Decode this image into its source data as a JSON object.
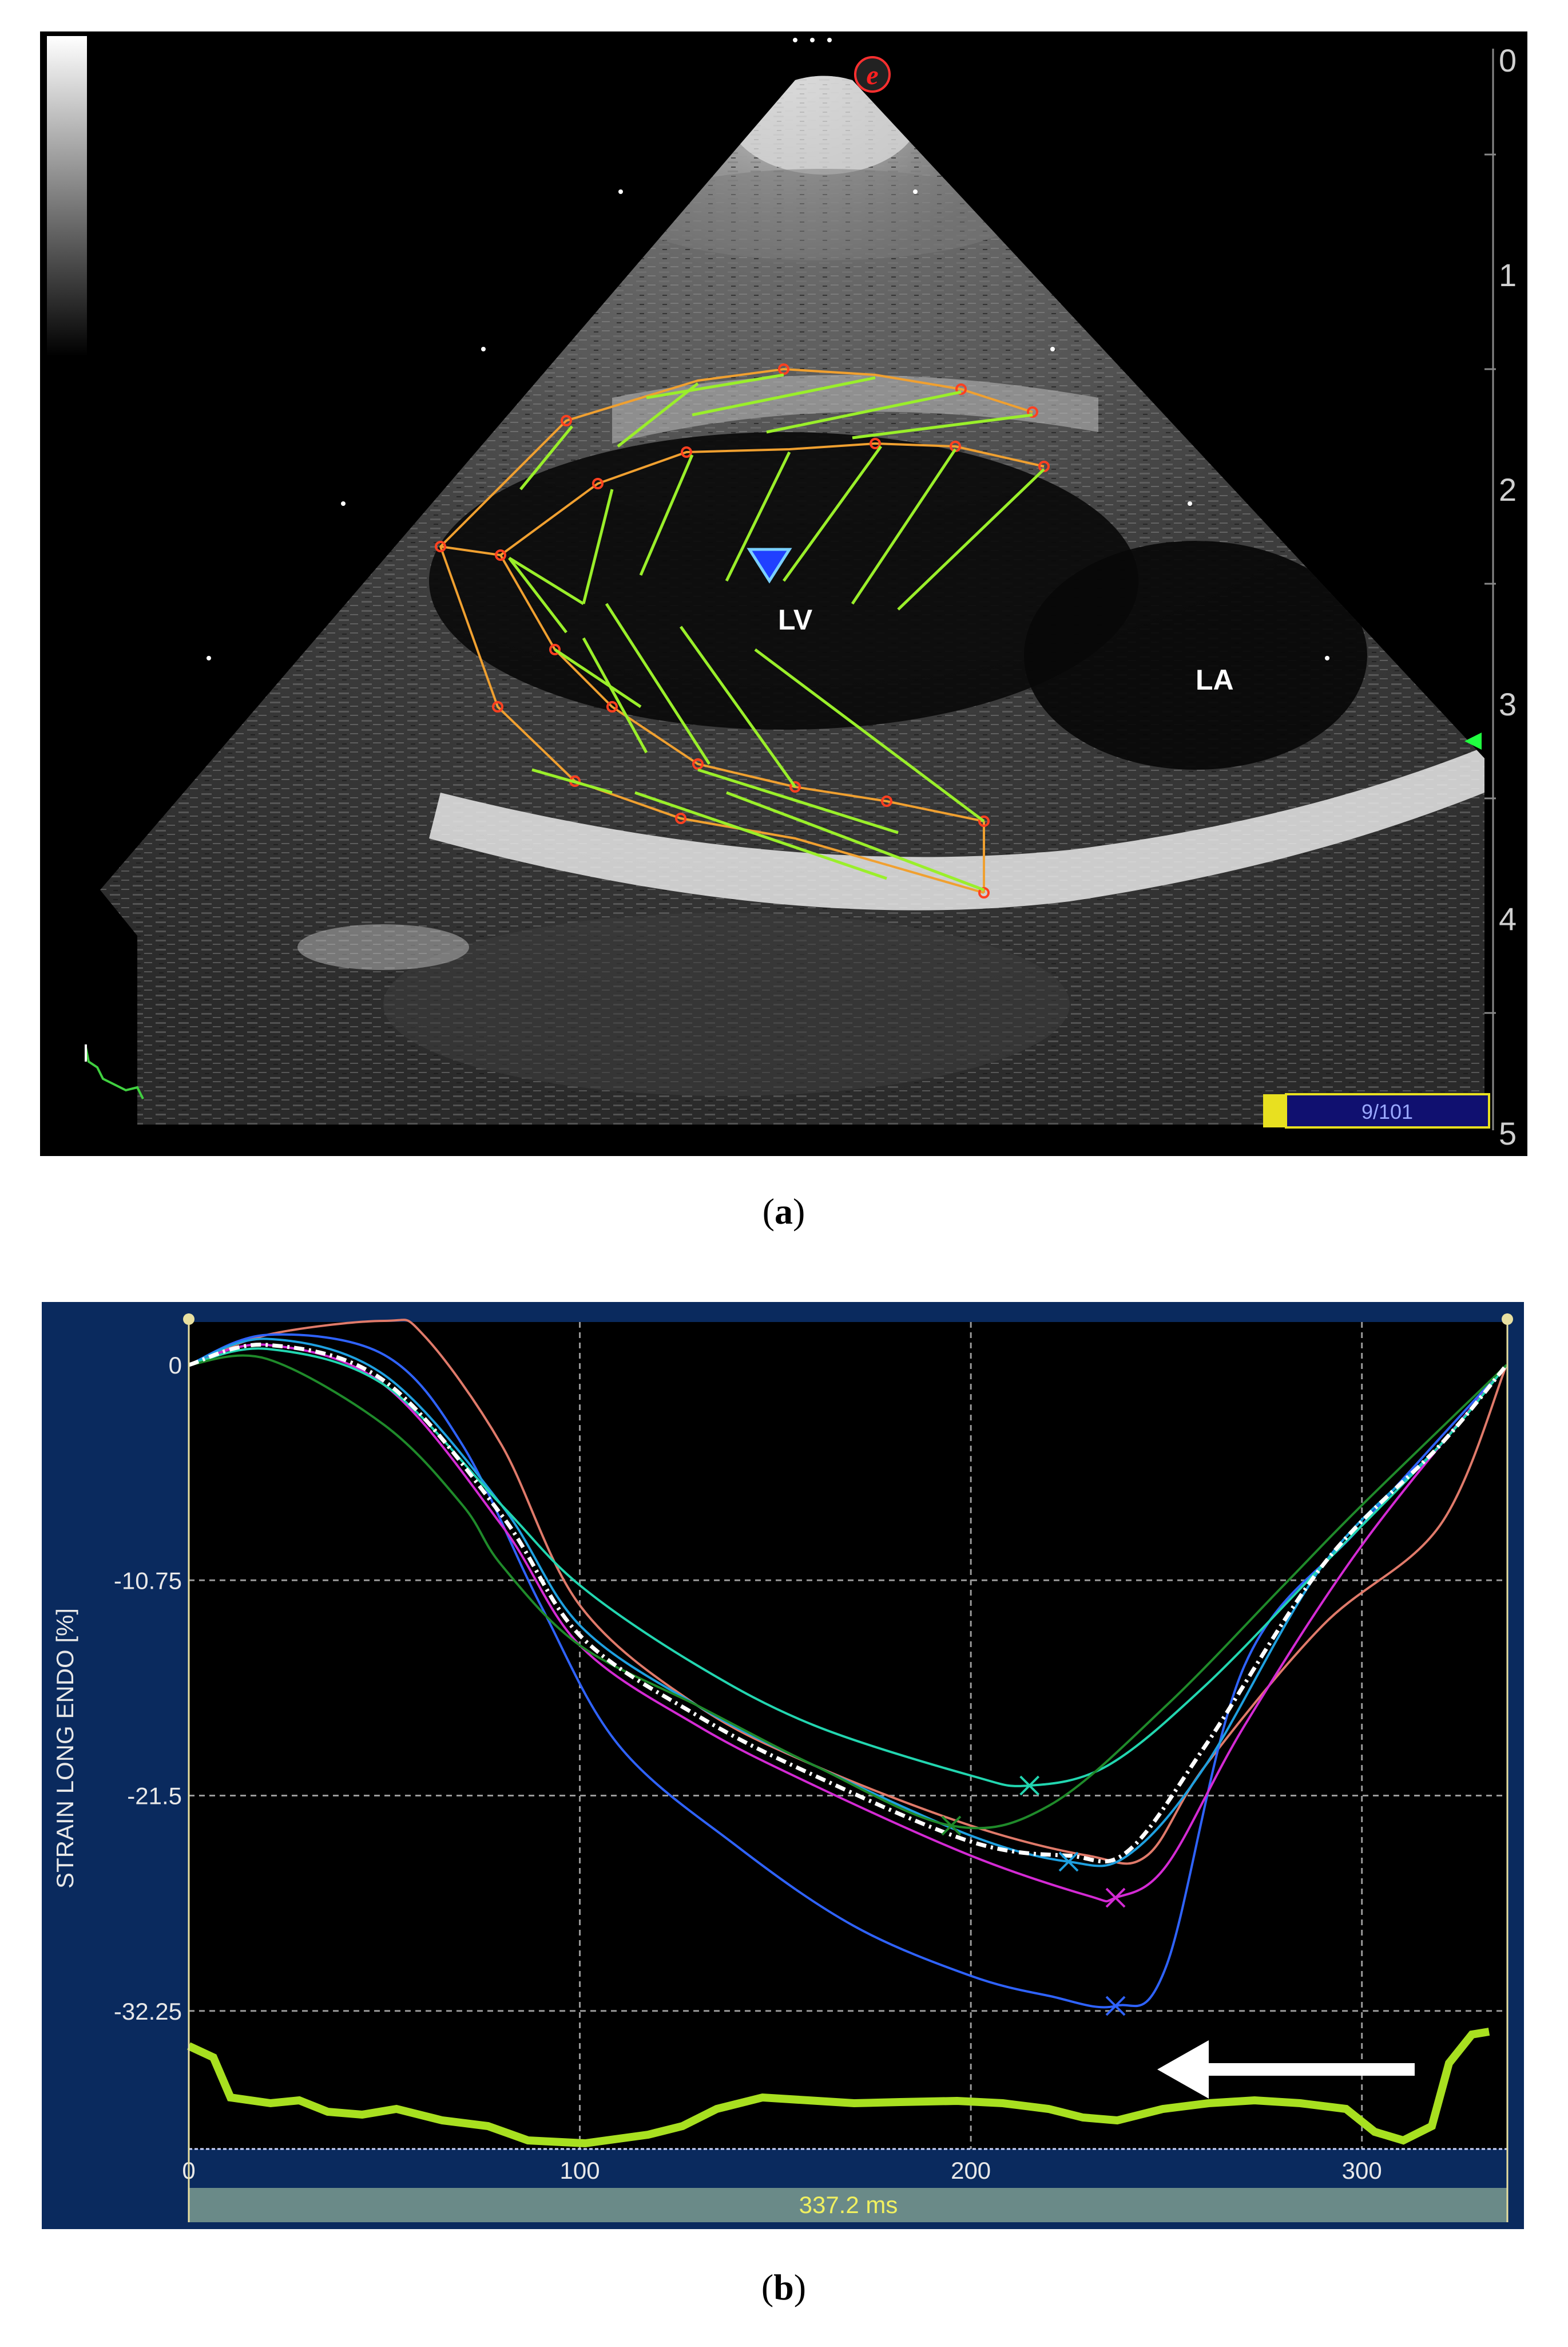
{
  "echo": {
    "labels": {
      "lv": "LV",
      "la": "LA"
    },
    "depth_scale": [
      "0",
      "1",
      "2",
      "3",
      "4",
      "5"
    ],
    "frame_counter": "9/101",
    "vendor_badge": "e",
    "colors": {
      "contour": "#f0a030",
      "vector": "#9aef2a",
      "point": "#ff4020",
      "marker": "#2850ff"
    }
  },
  "captions": {
    "a": "a",
    "b": "b"
  },
  "strain_chart": {
    "ylabel": "STRAIN LONG ENDO [%]",
    "footer": "337.2 ms"
  },
  "chart_data": {
    "type": "line",
    "xlabel": "",
    "ylabel": "STRAIN LONG ENDO [%]",
    "xlim": [
      0,
      337.2
    ],
    "ylim": [
      -40,
      2
    ],
    "x_ticks": [
      0,
      100,
      200,
      300
    ],
    "x_tick_labels": [
      "0",
      "100",
      "200",
      "300"
    ],
    "y_ticks": [
      0,
      -10.75,
      -21.5,
      -32.25
    ],
    "y_tick_labels": [
      "0",
      "-10.75",
      "-21.5",
      "-32.25"
    ],
    "grid": true,
    "series": [
      {
        "color": "#e07a6a",
        "x": [
          0,
          20,
          50,
          60,
          80,
          100,
          130,
          160,
          200,
          230,
          245,
          260,
          290,
          320,
          337
        ],
        "y": [
          0,
          1.5,
          2.2,
          1.5,
          -4,
          -12,
          -17,
          -20,
          -23,
          -24.5,
          -24.5,
          -20,
          -13,
          -8,
          0
        ],
        "marker": null
      },
      {
        "color": "#2f63ff",
        "x": [
          0,
          20,
          50,
          70,
          90,
          110,
          140,
          170,
          200,
          220,
          237,
          250,
          270,
          300,
          337
        ],
        "y": [
          0,
          1.5,
          0.5,
          -4,
          -12,
          -19,
          -24,
          -28,
          -30.5,
          -31.5,
          -32,
          -30,
          -15,
          -8,
          0
        ],
        "marker": [
          237,
          -32
        ]
      },
      {
        "color": "#d42ad4",
        "x": [
          0,
          20,
          50,
          80,
          100,
          130,
          160,
          200,
          230,
          237,
          250,
          270,
          300,
          337
        ],
        "y": [
          0,
          1,
          -1,
          -8,
          -14,
          -18,
          -21,
          -24.5,
          -26.5,
          -26.6,
          -25,
          -18,
          -9,
          0
        ],
        "marker": [
          237,
          -26.6
        ]
      },
      {
        "color": "#1ea0e0",
        "x": [
          0,
          20,
          50,
          80,
          100,
          130,
          160,
          200,
          225,
          240,
          260,
          290,
          320,
          337
        ],
        "y": [
          0,
          1.3,
          -0.5,
          -7,
          -13,
          -17,
          -20,
          -23.5,
          -24.8,
          -24.5,
          -20,
          -10,
          -4,
          0
        ],
        "marker": [
          225,
          -24.8
        ]
      },
      {
        "color": "#22d6b0",
        "x": [
          0,
          20,
          50,
          80,
          100,
          130,
          160,
          200,
          215,
          235,
          260,
          290,
          320,
          337
        ],
        "y": [
          0,
          0.8,
          -1,
          -7,
          -11,
          -15,
          -18,
          -20.5,
          -21,
          -20,
          -16,
          -10,
          -4,
          0
        ],
        "marker": [
          215,
          -21
        ]
      },
      {
        "color": "#1f8a2a",
        "x": [
          0,
          20,
          50,
          70,
          80,
          100,
          130,
          160,
          195,
          220,
          250,
          280,
          300,
          337
        ],
        "y": [
          0,
          0.3,
          -3,
          -7,
          -10,
          -14,
          -17,
          -20,
          -23,
          -22,
          -17,
          -11,
          -7,
          0
        ],
        "marker": [
          195,
          -23
        ]
      },
      {
        "color": "#ffffff",
        "dashed": true,
        "x": [
          0,
          20,
          50,
          80,
          100,
          130,
          160,
          200,
          225,
          240,
          260,
          290,
          320,
          337
        ],
        "y": [
          0,
          1,
          -0.8,
          -7.5,
          -13.5,
          -17.5,
          -20.5,
          -23.8,
          -24.5,
          -24.3,
          -19,
          -10,
          -4,
          0
        ],
        "marker": null
      }
    ],
    "annotations": [
      {
        "type": "arrow",
        "points_to": [
          250,
          -24.5
        ]
      }
    ]
  }
}
